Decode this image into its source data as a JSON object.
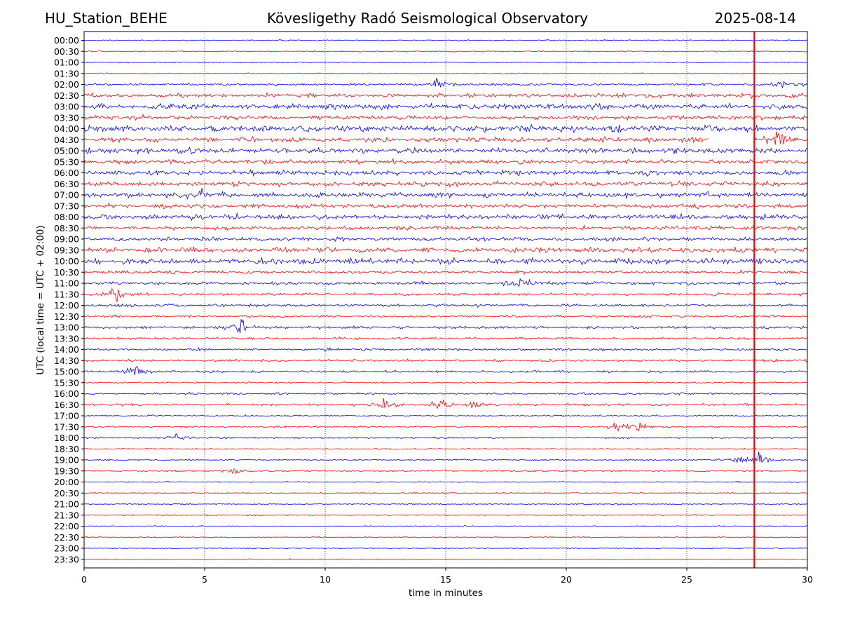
{
  "header": {
    "station": "HU_Station_BEHE",
    "observatory": "Kövesligethy Radó Seismological Observatory",
    "date": "2025-08-14"
  },
  "chart_data": {
    "type": "line",
    "xlabel": "time in minutes",
    "ylabel": "UTC (local time = UTC + 02:00)",
    "xlim": [
      0,
      30
    ],
    "x_ticks": [
      0,
      5,
      10,
      15,
      20,
      25,
      30
    ],
    "x_tick_labels": [
      "0",
      "5",
      "10",
      "15",
      "20",
      "25",
      "30"
    ],
    "grid": "vertical dotted",
    "colors": [
      "#0000ff",
      "#ff0000"
    ],
    "rows": [
      "00:00",
      "00:30",
      "01:00",
      "01:30",
      "02:00",
      "02:30",
      "03:00",
      "03:30",
      "04:00",
      "04:30",
      "05:00",
      "05:30",
      "06:00",
      "06:30",
      "07:00",
      "07:30",
      "08:00",
      "08:30",
      "09:00",
      "09:30",
      "10:00",
      "10:30",
      "11:00",
      "11:30",
      "12:00",
      "12:30",
      "13:00",
      "13:30",
      "14:00",
      "14:30",
      "15:00",
      "15:30",
      "16:00",
      "16:30",
      "17:00",
      "17:30",
      "18:00",
      "18:30",
      "19:00",
      "19:30",
      "20:00",
      "20:30",
      "21:00",
      "21:30",
      "22:00",
      "22:30",
      "23:00",
      "23:30"
    ],
    "row_noise": [
      0.6,
      0.6,
      0.6,
      0.6,
      1.2,
      2.2,
      2.8,
      2.2,
      3.2,
      2.6,
      2.8,
      2.2,
      2.4,
      2.3,
      2.6,
      2.2,
      2.6,
      2.0,
      2.0,
      2.6,
      2.8,
      1.6,
      1.6,
      1.4,
      1.4,
      1.2,
      1.4,
      1.2,
      1.2,
      1.2,
      1.2,
      0.8,
      1.0,
      1.2,
      0.8,
      0.8,
      0.9,
      0.6,
      0.8,
      0.8,
      0.6,
      0.6,
      0.6,
      0.6,
      0.6,
      0.5,
      0.5,
      0.5
    ],
    "events": [
      {
        "row": 4,
        "minute": 14.6,
        "amplitude": 6
      },
      {
        "row": 4,
        "minute": 29.0,
        "amplitude": 5
      },
      {
        "row": 9,
        "minute": 28.8,
        "amplitude": 8
      },
      {
        "row": 14,
        "minute": 4.8,
        "amplitude": 7
      },
      {
        "row": 22,
        "minute": 18.2,
        "amplitude": 7
      },
      {
        "row": 23,
        "minute": 1.4,
        "amplitude": 9
      },
      {
        "row": 26,
        "minute": 6.5,
        "amplitude": 8
      },
      {
        "row": 30,
        "minute": 2.2,
        "amplitude": 6
      },
      {
        "row": 33,
        "minute": 12.5,
        "amplitude": 6
      },
      {
        "row": 33,
        "minute": 14.8,
        "amplitude": 8
      },
      {
        "row": 33,
        "minute": 16.2,
        "amplitude": 6
      },
      {
        "row": 35,
        "minute": 22.0,
        "amplitude": 5
      },
      {
        "row": 35,
        "minute": 23.0,
        "amplitude": 6
      },
      {
        "row": 36,
        "minute": 3.8,
        "amplitude": 6
      },
      {
        "row": 38,
        "minute": 27.2,
        "amplitude": 6
      },
      {
        "row": 38,
        "minute": 28.0,
        "amplitude": 8
      },
      {
        "row": 39,
        "minute": 6.2,
        "amplitude": 4
      }
    ],
    "gap": {
      "row": 9,
      "start_minute": 25.9,
      "end_minute": 27.8
    },
    "marker_minute": 27.8
  }
}
